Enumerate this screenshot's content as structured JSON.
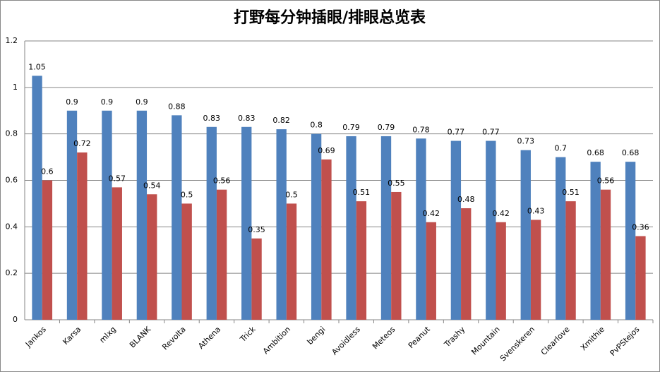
{
  "chart_data": {
    "type": "bar",
    "title": "打野每分钟插眼/排眼总览表",
    "categories": [
      "Jankos",
      "Karsa",
      "mlxg",
      "BLANK",
      "Revolta",
      "Athena",
      "Trick",
      "Ambition",
      "bengi",
      "Avoidless",
      "Meteos",
      "Peanut",
      "Trashy",
      "Mountain",
      "Svenskeren",
      "Clearlove",
      "Xmithie",
      "PvPStejos"
    ],
    "series": [
      {
        "color": "#4f81bd",
        "values": [
          1.05,
          0.9,
          0.9,
          0.9,
          0.88,
          0.83,
          0.83,
          0.82,
          0.8,
          0.79,
          0.79,
          0.78,
          0.77,
          0.77,
          0.73,
          0.7,
          0.68,
          0.68
        ]
      },
      {
        "color": "#c0504d",
        "values": [
          0.6,
          0.72,
          0.57,
          0.54,
          0.5,
          0.56,
          0.35,
          0.5,
          0.69,
          0.51,
          0.55,
          0.42,
          0.48,
          0.42,
          0.43,
          0.51,
          0.56,
          0.36
        ]
      }
    ],
    "ylim": [
      0,
      1.2
    ],
    "yticks": [
      0,
      0.2,
      0.4,
      0.6,
      0.8,
      1,
      1.2
    ],
    "grid": true
  }
}
